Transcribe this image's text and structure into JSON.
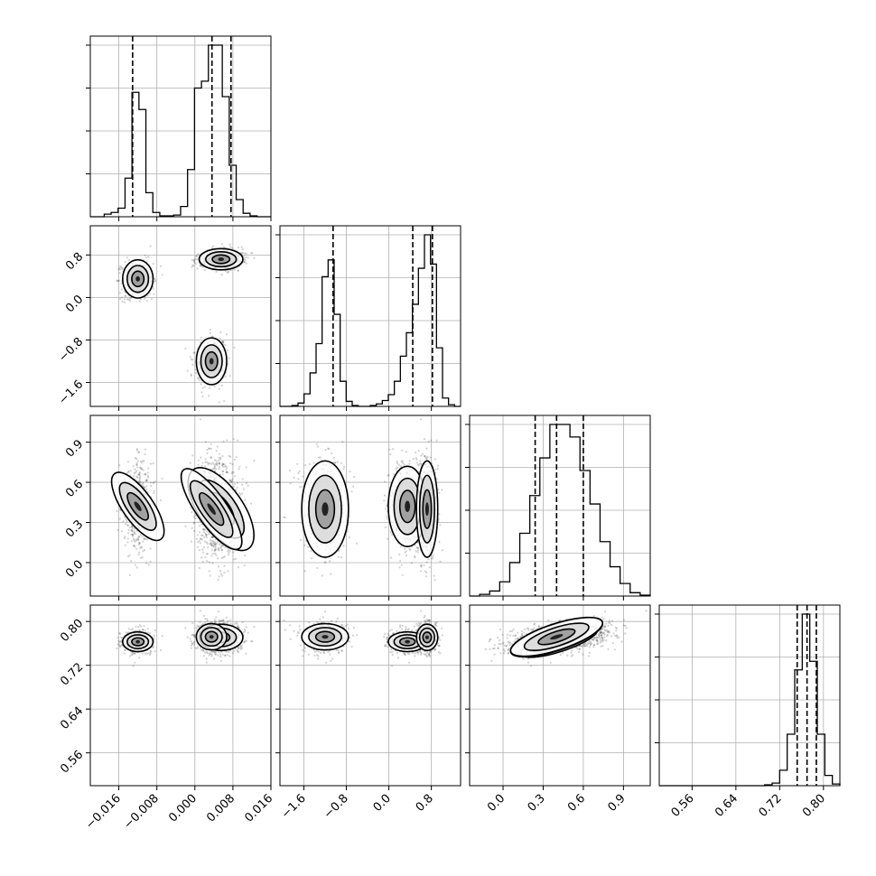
{
  "chart_data": {
    "type": "corner",
    "title": "",
    "grid": true,
    "parameters": [
      {
        "index": 0,
        "range": [
          -0.022,
          0.016
        ],
        "ticks": [
          -0.016,
          -0.008,
          0.0,
          0.008,
          0.016
        ],
        "tick_labels": [
          "−0.016",
          "−0.008",
          "0.000",
          "0.008",
          "0.016"
        ],
        "quantiles": [
          -0.0131,
          0.0036,
          0.0076
        ]
      },
      {
        "index": 1,
        "range": [
          -2.05,
          1.35
        ],
        "ticks": [
          -1.6,
          -0.8,
          0.0,
          0.8
        ],
        "tick_labels": [
          "−1.6",
          "−0.8",
          "0.0",
          "0.8"
        ],
        "quantiles": [
          -1.05,
          0.45,
          0.82
        ]
      },
      {
        "index": 2,
        "range": [
          -0.25,
          1.1
        ],
        "ticks": [
          0.0,
          0.3,
          0.6,
          0.9
        ],
        "tick_labels": [
          "0.0",
          "0.3",
          "0.6",
          "0.9"
        ],
        "quantiles": [
          0.24,
          0.4,
          0.6
        ]
      },
      {
        "index": 3,
        "range": [
          0.5,
          0.83
        ],
        "ticks": [
          0.56,
          0.64,
          0.72,
          0.8
        ],
        "tick_labels": [
          "0.56",
          "0.64",
          "0.72",
          "0.80"
        ],
        "quantiles": [
          0.752,
          0.77,
          0.787
        ]
      }
    ],
    "histograms": [
      {
        "param": 0,
        "bin_edges_range": [
          -0.022,
          0.016
        ],
        "counts": [
          0,
          0,
          3,
          5,
          10,
          45,
          145,
          125,
          28,
          5,
          1,
          1,
          2,
          12,
          55,
          150,
          158,
          200,
          200,
          140,
          60,
          20,
          4,
          1,
          0,
          0
        ]
      },
      {
        "param": 1,
        "bin_edges_range": [
          -2.05,
          1.35
        ],
        "counts": [
          0,
          0,
          1,
          4,
          15,
          40,
          75,
          155,
          175,
          110,
          30,
          6,
          1,
          0,
          0,
          1,
          3,
          7,
          14,
          30,
          60,
          88,
          122,
          165,
          205,
          170,
          70,
          10,
          2,
          0
        ]
      },
      {
        "param": 2,
        "bin_edges_range": [
          -0.25,
          1.1
        ],
        "counts": [
          0,
          2,
          6,
          17,
          40,
          75,
          120,
          165,
          205,
          205,
          190,
          150,
          110,
          65,
          35,
          15,
          4,
          1
        ]
      },
      {
        "param": 3,
        "bin_edges_range": [
          0.5,
          0.83
        ],
        "counts": [
          0,
          0,
          0,
          0,
          0,
          0,
          0,
          0,
          0,
          0,
          0,
          0,
          0,
          0,
          1,
          3,
          18,
          60,
          135,
          200,
          145,
          60,
          12,
          2
        ]
      }
    ],
    "clusters": [
      {
        "weight": 0.3,
        "mean": [
          -0.012,
          0.35,
          0.42,
          0.763
        ],
        "sd": [
          0.0016,
          0.18,
          0.15,
          0.009
        ]
      },
      {
        "weight": 0.33,
        "mean": [
          0.0055,
          0.72,
          0.4,
          0.771
        ],
        "sd": [
          0.0023,
          0.1,
          0.18,
          0.012
        ]
      },
      {
        "weight": 0.24,
        "mean": [
          0.0035,
          -1.2,
          0.4,
          0.772
        ],
        "sd": [
          0.0016,
          0.22,
          0.18,
          0.012
        ]
      }
    ]
  }
}
